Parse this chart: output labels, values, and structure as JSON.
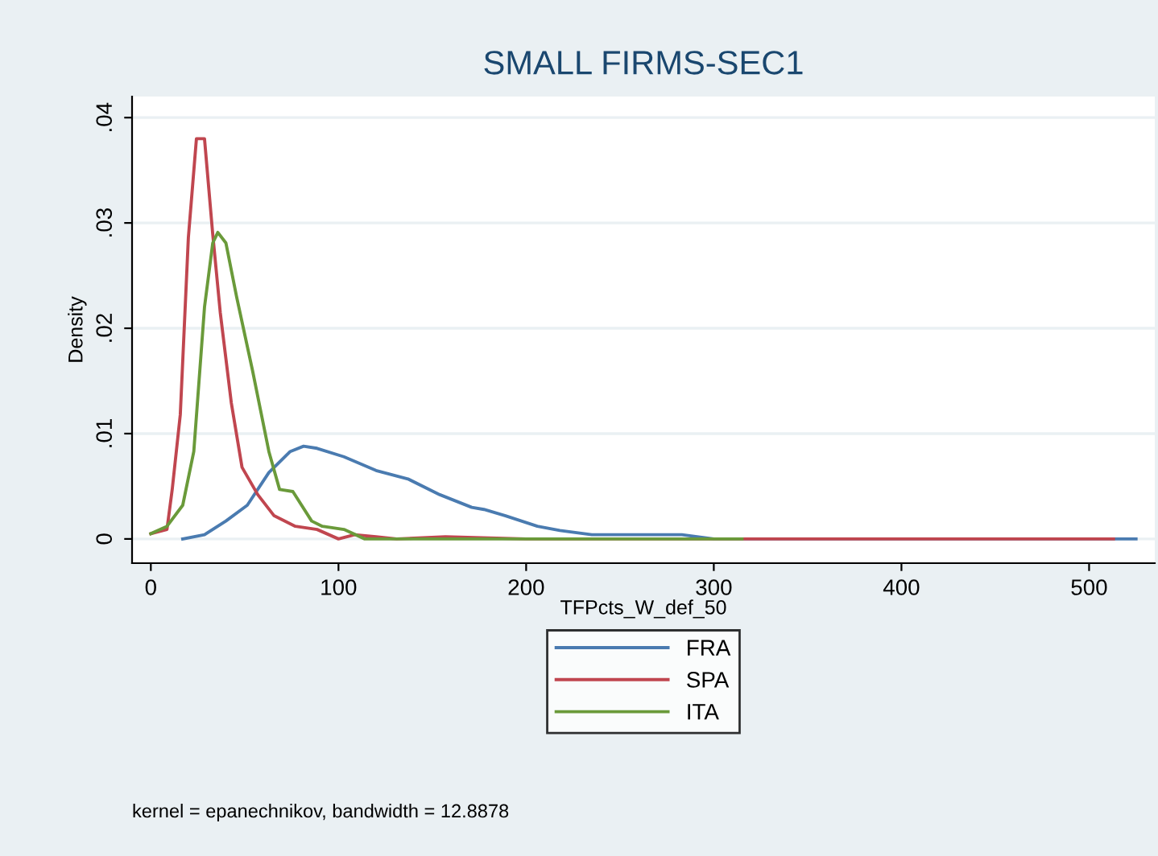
{
  "chart_data": {
    "type": "line",
    "title": "SMALL FIRMS-SEC1",
    "xlabel": "TFPcts_W_def_50",
    "ylabel": "Density",
    "xlim": [
      -10,
      535
    ],
    "xticks": [
      0,
      100,
      200,
      300,
      400,
      500
    ],
    "ylim": [
      -0.0023,
      0.042
    ],
    "yticks": [
      0,
      {
        "value": 0.01,
        "label": ".01"
      },
      {
        "value": 0.02,
        "label": ".02"
      },
      {
        "value": 0.03,
        "label": ".03"
      },
      {
        "value": 0.04,
        "label": ".04"
      }
    ],
    "grid": "y",
    "legend": "bottom",
    "line_style": "solid",
    "marker": "none",
    "annotations": [
      "kernel = epanechnikov, bandwidth = 12.8878"
    ],
    "series": [
      {
        "name": "FRA",
        "color": "#4a7bb0",
        "x": [
          17,
          28.6,
          40,
          51.4,
          62.9,
          74.3,
          81.4,
          88.6,
          102.9,
          120,
          137,
          154,
          171,
          177.5,
          189,
          206,
          218,
          235,
          283,
          300,
          400,
          525
        ],
        "values": [
          0,
          0.0004,
          0.0017,
          0.0032,
          0.0063,
          0.0083,
          0.0088,
          0.0086,
          0.0078,
          0.0065,
          0.0057,
          0.0042,
          0.003,
          0.0028,
          0.0022,
          0.0012,
          0.0008,
          0.0004,
          0.0004,
          0,
          0,
          0
        ]
      },
      {
        "name": "SPA",
        "color": "#c0464f",
        "x": [
          0,
          8.6,
          11.4,
          15.7,
          20,
          24.3,
          28.6,
          32.9,
          37,
          42.9,
          48.6,
          57,
          65.7,
          77,
          88.6,
          100,
          108.6,
          120,
          131,
          157,
          200,
          300,
          400,
          513
        ],
        "values": [
          0.0005,
          0.0009,
          0.0047,
          0.0118,
          0.0286,
          0.038,
          0.038,
          0.0291,
          0.0215,
          0.0129,
          0.0068,
          0.0042,
          0.0022,
          0.0012,
          0.0009,
          0,
          0.0004,
          0.0002,
          0,
          0.0002,
          0,
          0,
          0,
          0
        ]
      },
      {
        "name": "ITA",
        "color": "#6a9a3a",
        "x": [
          0,
          8.6,
          17,
          22.9,
          28.6,
          33,
          35.7,
          40,
          45.7,
          54.3,
          62.9,
          68.6,
          75.7,
          85.7,
          91.4,
          102.9,
          114,
          200,
          315
        ],
        "values": [
          0.0005,
          0.0012,
          0.0032,
          0.0083,
          0.022,
          0.0281,
          0.0291,
          0.0281,
          0.023,
          0.0159,
          0.0083,
          0.0047,
          0.0045,
          0.0017,
          0.0012,
          0.0009,
          0,
          0,
          0
        ]
      }
    ]
  }
}
